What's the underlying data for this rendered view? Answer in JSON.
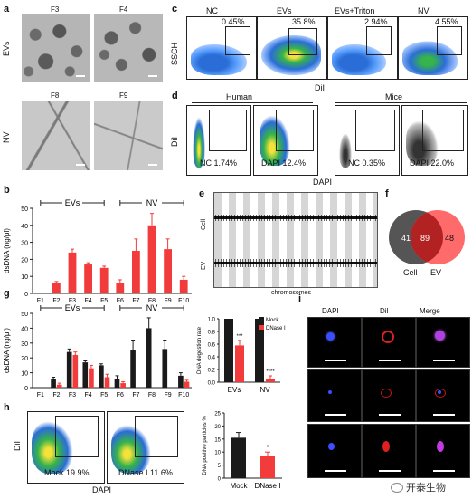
{
  "panels": {
    "a": {
      "label": "a",
      "row_labels": [
        "EVs",
        "NV"
      ],
      "titles": [
        "F3",
        "F4",
        "F8",
        "F9"
      ]
    },
    "c": {
      "label": "c",
      "titles": [
        "NC",
        "EVs",
        "EVs+Triton",
        "NV"
      ],
      "pcts": [
        "0.45%",
        "35.8%",
        "2.94%",
        "4.55%"
      ],
      "ylabel": "SSCH",
      "xlabel": "DiI"
    },
    "d": {
      "label": "d",
      "group_human": "Human",
      "group_mice": "Mice",
      "texts": [
        "NC 1.74%",
        "DAPI 12.4%",
        "NC 0.35%",
        "DAPI 22.0%"
      ],
      "ylabel": "DiI",
      "xlabel": "DAPI"
    },
    "b": {
      "label": "b"
    },
    "e": {
      "label": "e",
      "row_labels": [
        "Cell",
        "EV"
      ],
      "xlabel": "chromosomes"
    },
    "f": {
      "label": "f",
      "left": "41",
      "center": "89",
      "right": "48",
      "left_name": "Cell",
      "right_name": "EV"
    },
    "g": {
      "label": "g"
    },
    "g2": {
      "ylabel": "DNA degestion rate",
      "legend_mock": "Mock",
      "legend_dnase": "DNase I",
      "categories": [
        "EVs",
        "NV"
      ],
      "stars": [
        "***",
        "****"
      ]
    },
    "h": {
      "label": "h",
      "ylabel": "DiI",
      "xlabel": "DAPI",
      "texts": [
        "Mock 19.9%",
        "DNase I 11.6%"
      ]
    },
    "h2": {
      "ylabel": "DNA positive particles %",
      "categories": [
        "Mock",
        "DNase I"
      ],
      "star": "*"
    },
    "i": {
      "label": "i",
      "titles": [
        "DAPI",
        "DiI",
        "Merge"
      ]
    },
    "watermark": "开泰生物"
  },
  "colors": {
    "red": "#f23b3b",
    "black": "#1a1a1a",
    "grey": "#d0d0d0",
    "venn_left": "#555555",
    "venn_right": "#ff5a5a",
    "venn_center": "#b22222"
  },
  "chart_data": [
    {
      "type": "bar",
      "panel": "b",
      "categories": [
        "F1",
        "F2",
        "F3",
        "F4",
        "F5",
        "F6",
        "F7",
        "F8",
        "F9",
        "F10"
      ],
      "values": [
        0,
        6,
        24,
        17,
        15,
        6,
        25,
        40,
        26,
        8
      ],
      "errors": [
        0,
        1,
        2,
        1,
        1,
        2,
        7,
        7,
        6,
        2
      ],
      "ylabel": "dsDNA (ng/μl)",
      "ylim": [
        0,
        50
      ],
      "yticks": [
        0,
        10,
        20,
        30,
        40,
        50
      ],
      "brackets": [
        {
          "label": "EVs",
          "from": "F1",
          "to": "F5"
        },
        {
          "label": "NV",
          "from": "F6",
          "to": "F10"
        }
      ]
    },
    {
      "type": "bar",
      "panel": "g",
      "categories": [
        "F1",
        "F2",
        "F3",
        "F4",
        "F5",
        "F6",
        "F7",
        "F8",
        "F9",
        "F10"
      ],
      "series": [
        {
          "name": "Mock",
          "values": [
            0,
            6,
            24,
            17,
            15,
            6,
            25,
            40,
            26,
            8
          ],
          "errors": [
            0,
            1,
            2,
            1,
            1,
            2,
            7,
            7,
            6,
            2
          ]
        },
        {
          "name": "DNase I",
          "values": [
            0,
            2,
            22,
            13,
            7,
            3,
            0,
            0,
            0,
            4
          ],
          "errors": [
            0,
            1,
            2,
            2,
            2,
            1,
            0,
            0,
            0,
            1
          ]
        }
      ],
      "ylabel": "dsDNA (ng/μl)",
      "ylim": [
        0,
        50
      ],
      "yticks": [
        0,
        10,
        20,
        30,
        40,
        50
      ],
      "brackets": [
        {
          "label": "EVs",
          "from": "F1",
          "to": "F5"
        },
        {
          "label": "NV",
          "from": "F6",
          "to": "F10"
        }
      ]
    },
    {
      "type": "bar",
      "panel": "g2",
      "categories": [
        "EVs",
        "NV"
      ],
      "series": [
        {
          "name": "Mock",
          "values": [
            1.0,
            1.0
          ]
        },
        {
          "name": "DNase I",
          "values": [
            0.58,
            0.05
          ],
          "errors": [
            0.08,
            0.05
          ]
        }
      ],
      "ylim": [
        0,
        1.0
      ],
      "yticks": [
        0,
        0.2,
        0.4,
        0.6,
        0.8,
        1.0
      ]
    },
    {
      "type": "bar",
      "panel": "h2",
      "categories": [
        "Mock",
        "DNase I"
      ],
      "values": [
        15.5,
        8.5
      ],
      "errors": [
        2,
        1.5
      ],
      "ylim": [
        0,
        25
      ],
      "yticks": [
        0,
        5,
        10,
        15,
        20,
        25
      ]
    }
  ]
}
